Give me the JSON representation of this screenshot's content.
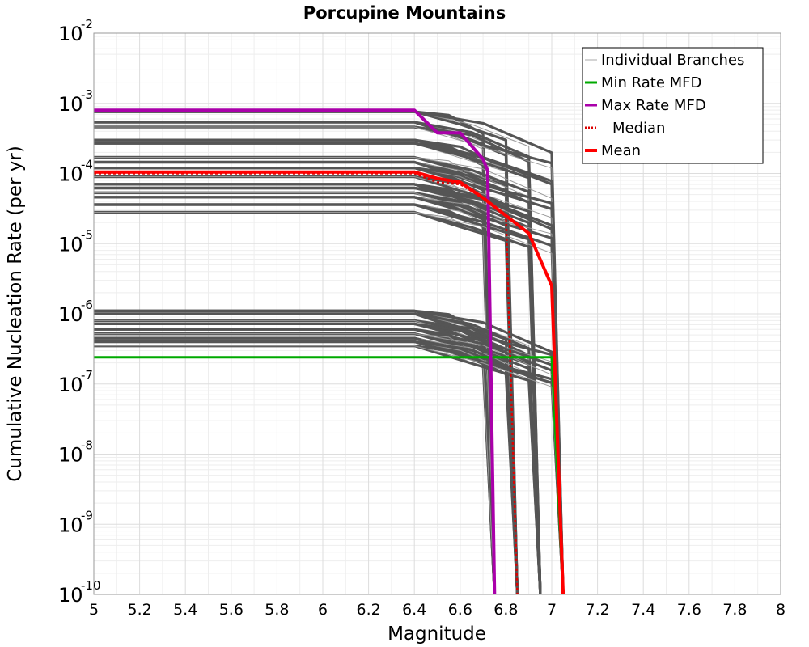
{
  "chart_data": {
    "type": "line",
    "title": "Porcupine Mountains",
    "xlabel": "Magnitude",
    "ylabel": "Cumulative Nucleation Rate (per yr)",
    "xlim": [
      5,
      8
    ],
    "ylim": [
      1e-10,
      0.01
    ],
    "yscale": "log",
    "grid": true,
    "legend_position": "top-right",
    "x_ticks": [
      "5",
      "5.2",
      "5.4",
      "5.6",
      "5.8",
      "6",
      "6.2",
      "6.4",
      "6.6",
      "6.8",
      "7",
      "7.2",
      "7.4",
      "7.6",
      "7.8",
      "8"
    ],
    "y_ticks": [
      {
        "base": "10",
        "exp": "-10"
      },
      {
        "base": "10",
        "exp": "-9"
      },
      {
        "base": "10",
        "exp": "-8"
      },
      {
        "base": "10",
        "exp": "-7"
      },
      {
        "base": "10",
        "exp": "-6"
      },
      {
        "base": "10",
        "exp": "-5"
      },
      {
        "base": "10",
        "exp": "-4"
      },
      {
        "base": "10",
        "exp": "-3"
      },
      {
        "base": "10",
        "exp": "-2"
      }
    ],
    "legend": [
      {
        "label": "Individual Branches",
        "color": "#aaaaaa",
        "style": "thin"
      },
      {
        "label": "Min Rate MFD",
        "color": "#00aa00",
        "style": "solid"
      },
      {
        "label": "Max Rate MFD",
        "color": "#aa00aa",
        "style": "solid"
      },
      {
        "label": "Median",
        "color": "#dd0000",
        "style": "dotted"
      },
      {
        "label": "Mean",
        "color": "#ff0000",
        "style": "thick"
      }
    ],
    "series": [
      {
        "name": "Min Rate MFD",
        "color": "#00aa00",
        "width": 3,
        "x": [
          5.0,
          7.0,
          7.05
        ],
        "y": [
          2.4e-07,
          2.4e-07,
          1e-10
        ]
      },
      {
        "name": "Max Rate MFD",
        "color": "#aa00aa",
        "width": 4,
        "x": [
          5.0,
          6.4,
          6.5,
          6.6,
          6.7,
          6.72,
          6.75
        ],
        "y": [
          0.0008,
          0.0008,
          0.00038,
          0.00038,
          0.00016,
          0.00011,
          1e-10
        ]
      },
      {
        "name": "Median",
        "color": "#dd0000",
        "width": 2.5,
        "dash": "3,3",
        "x": [
          5.0,
          6.4,
          6.5,
          6.6,
          6.7,
          6.8,
          6.85
        ],
        "y": [
          0.0001,
          0.0001,
          7.5e-05,
          7e-05,
          4.5e-05,
          2.5e-05,
          1e-10
        ]
      },
      {
        "name": "Mean",
        "color": "#ff0000",
        "width": 4,
        "x": [
          5.0,
          6.4,
          6.5,
          6.6,
          6.7,
          6.8,
          6.9,
          7.0,
          7.05
        ],
        "y": [
          0.000105,
          0.000105,
          8.5e-05,
          7.5e-05,
          4.5e-05,
          2.5e-05,
          1.4e-05,
          2.5e-06,
          1e-10
        ]
      }
    ]
  }
}
